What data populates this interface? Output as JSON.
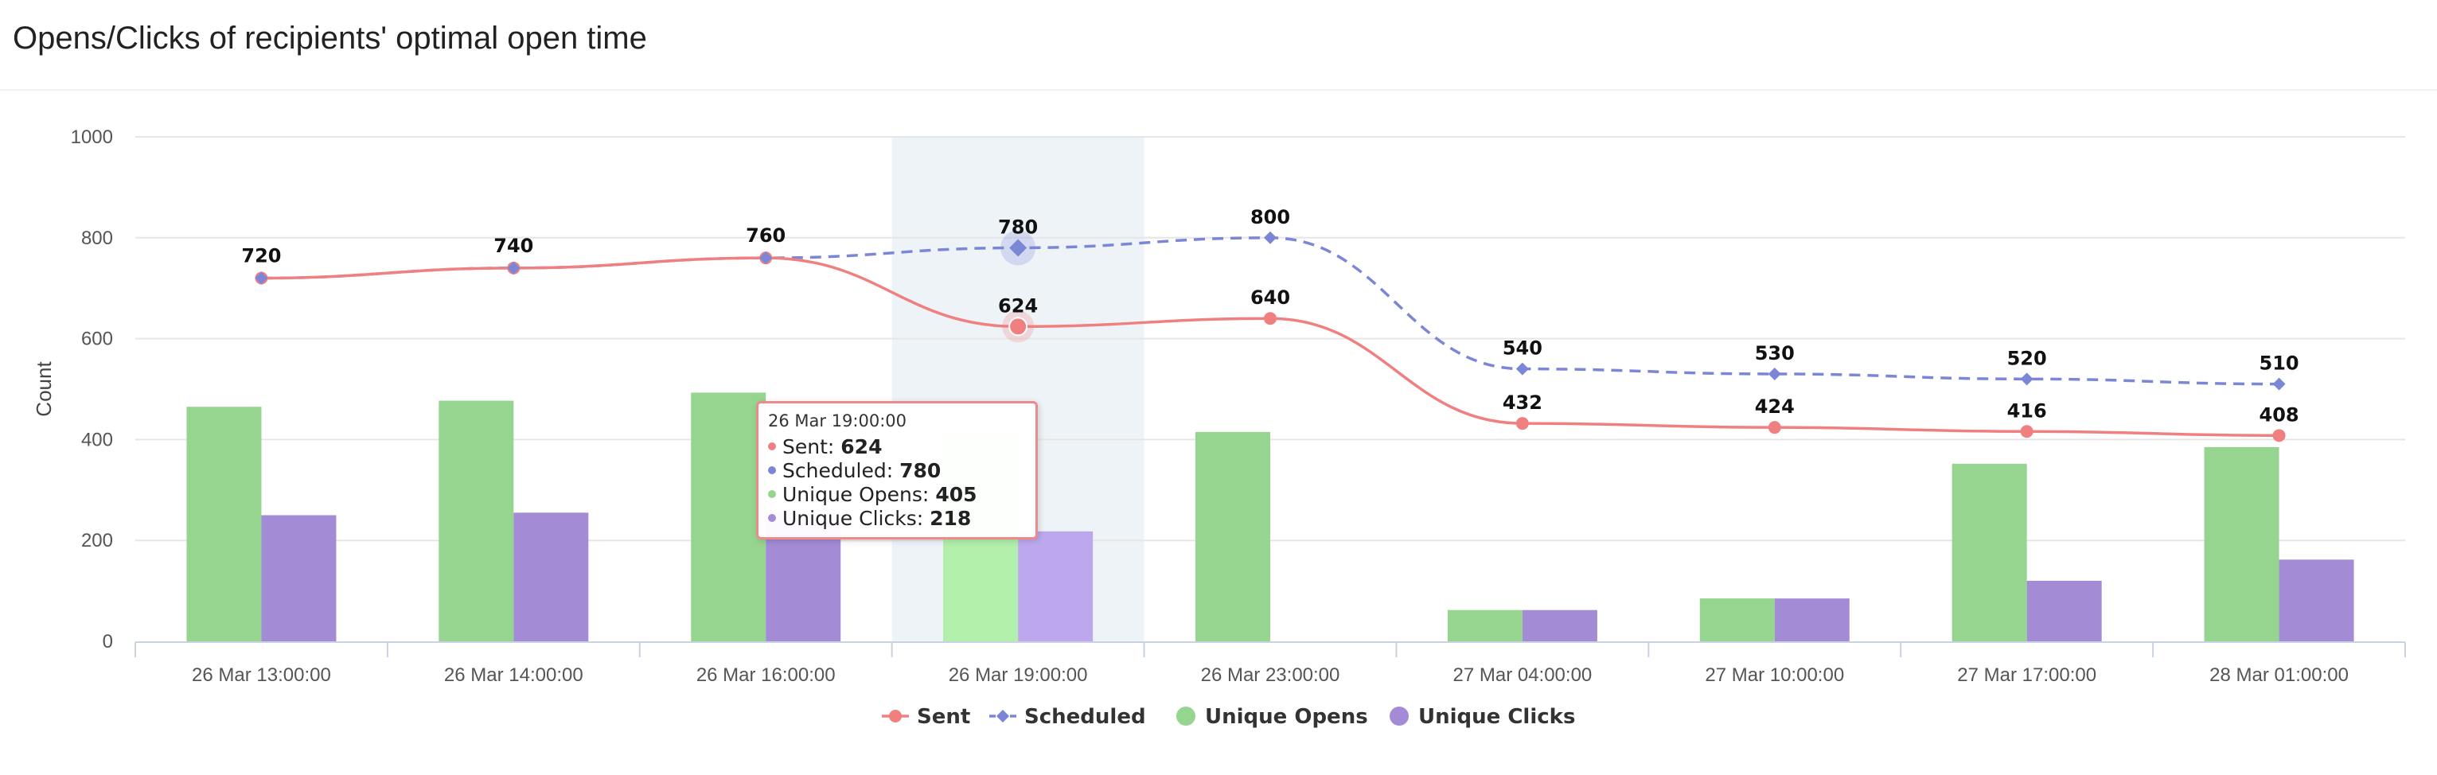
{
  "title": "Opens/Clicks of recipients' optimal open time",
  "colors": {
    "sent": "#f08080",
    "scheduled": "#7b86d6",
    "opens": "#95d58f",
    "clicks": "#a38bd6",
    "highlight_band": "#eef3f8",
    "grid": "#e6e6e6"
  },
  "chart_data": {
    "type": "bar",
    "categories": [
      "26 Mar 13:00:00",
      "26 Mar 14:00:00",
      "26 Mar 16:00:00",
      "26 Mar 19:00:00",
      "26 Mar 23:00:00",
      "27 Mar 04:00:00",
      "27 Mar 10:00:00",
      "27 Mar 17:00:00",
      "28 Mar 01:00:00"
    ],
    "ylabel": "Count",
    "xlabel": "",
    "ylim": [
      0,
      1000
    ],
    "yticks": [
      0,
      200,
      400,
      600,
      800,
      1000
    ],
    "grid": true,
    "legend_position": "bottom-center",
    "highlighted_category": "26 Mar 19:00:00",
    "series": [
      {
        "key": "opens",
        "name": "Unique Opens",
        "kind": "bar",
        "values": [
          465,
          477,
          493,
          405,
          415,
          62,
          85,
          352,
          385
        ]
      },
      {
        "key": "clicks",
        "name": "Unique Clicks",
        "kind": "bar",
        "values": [
          250,
          255,
          255,
          218,
          0,
          62,
          85,
          120,
          162
        ]
      },
      {
        "key": "sent",
        "name": "Sent",
        "kind": "line",
        "style": "solid",
        "values": [
          720,
          740,
          760,
          624,
          640,
          432,
          424,
          416,
          408
        ]
      },
      {
        "key": "scheduled",
        "name": "Scheduled",
        "kind": "line",
        "style": "dashed",
        "values": [
          720,
          740,
          760,
          780,
          800,
          540,
          530,
          520,
          510
        ]
      }
    ],
    "legend": [
      "Sent",
      "Scheduled",
      "Unique Opens",
      "Unique Clicks"
    ]
  },
  "tooltip": {
    "header": "26 Mar 19:00:00",
    "rows": [
      {
        "label": "Sent: ",
        "value": "624",
        "color": "#f08080"
      },
      {
        "label": "Scheduled: ",
        "value": "780",
        "color": "#7b86d6"
      },
      {
        "label": "Unique Opens: ",
        "value": "405",
        "color": "#95d58f"
      },
      {
        "label": "Unique Clicks: ",
        "value": "218",
        "color": "#a38bd6"
      }
    ]
  }
}
